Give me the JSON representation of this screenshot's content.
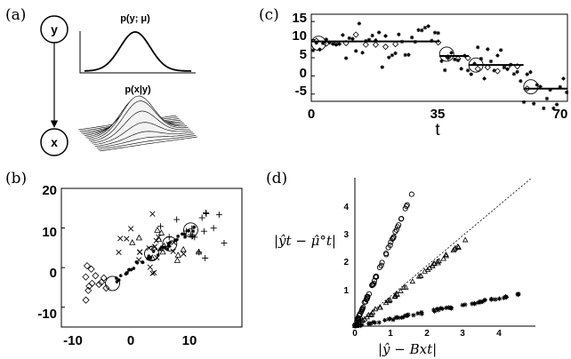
{
  "labels": {
    "a": "(a)",
    "b": "(b)",
    "c": "(c)",
    "d": "(d)"
  },
  "graph": {
    "node_y": "y",
    "node_x": "x",
    "prior_title": "p(y; μ)",
    "likelihood_title": "p(x|y)"
  },
  "panel_c": {
    "x_tick_labels": [
      "0",
      "35",
      "70"
    ],
    "y_tick_labels": [
      "15",
      "10",
      "5",
      "0",
      "-5"
    ],
    "xlabel": "t"
  },
  "panel_b": {
    "x_tick_labels": [
      "-10",
      "0",
      "10"
    ],
    "y_tick_labels": [
      "20",
      "10",
      "0",
      "-10"
    ]
  },
  "panel_d": {
    "x_tick_labels": [
      "0",
      "1",
      "2",
      "3",
      "4"
    ],
    "y_tick_labels": [
      "1",
      "2",
      "3",
      "4"
    ],
    "ylabel": "|ŷt − μ̂°t|",
    "xlabel": "|ŷ − Bxt|"
  },
  "chart_data": [
    {
      "type": "line",
      "panel": "c",
      "xlim": [
        0,
        70
      ],
      "ylim": [
        -7,
        17
      ],
      "segments": [
        {
          "x0": 0,
          "x1": 35,
          "y": 9.5
        },
        {
          "x0": 35,
          "x1": 43,
          "y": 5.5
        },
        {
          "x0": 43,
          "x1": 58,
          "y": 3
        },
        {
          "x0": 58,
          "x1": 70,
          "y": -3.5
        }
      ],
      "circles": [
        {
          "x": 2,
          "y": 9
        },
        {
          "x": 37,
          "y": 6
        },
        {
          "x": 45,
          "y": 3
        },
        {
          "x": 60,
          "y": -3
        }
      ]
    },
    {
      "type": "scatter",
      "panel": "b",
      "xlim": [
        -12,
        18
      ],
      "ylim": [
        -15,
        20
      ],
      "circles": [
        {
          "x": -3.5,
          "y": -4
        },
        {
          "x": 3,
          "y": 3.5
        },
        {
          "x": 6,
          "y": 6
        },
        {
          "x": 9.5,
          "y": 9.5
        }
      ]
    },
    {
      "type": "scatter",
      "panel": "d",
      "xlim": [
        0,
        5
      ],
      "ylim": [
        0,
        5
      ],
      "series": [
        {
          "marker": "circle",
          "slope": 3.0
        },
        {
          "marker": "triangle",
          "slope": 1.0
        },
        {
          "marker": "star",
          "slope": 0.25
        }
      ]
    }
  ]
}
